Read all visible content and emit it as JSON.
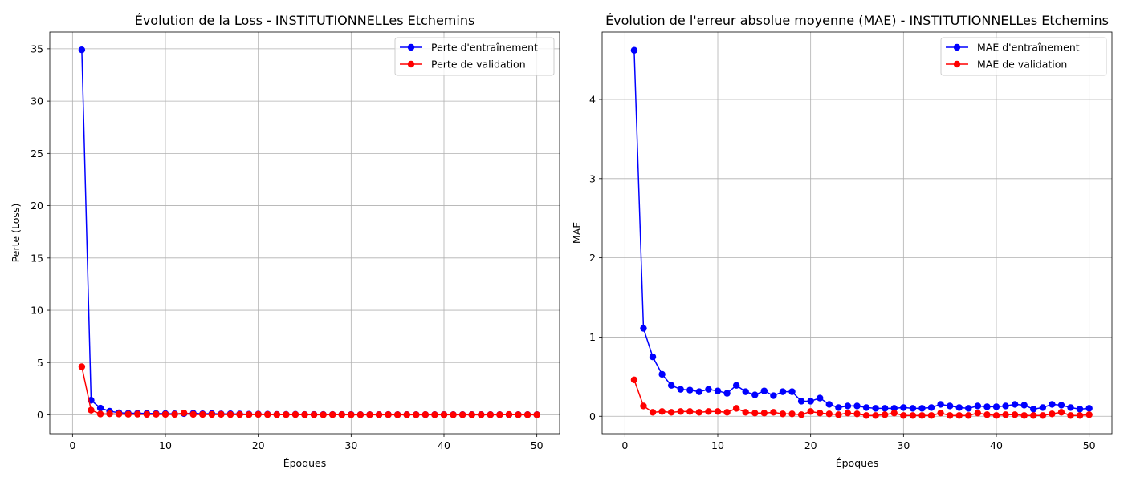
{
  "chart_data": [
    {
      "type": "line",
      "title": "Évolution de la Loss - INSTITUTIONNELLes Etchemins",
      "xlabel": "Époques",
      "ylabel": "Perte (Loss)",
      "xlim": [
        -2.45,
        52.45
      ],
      "ylim": [
        -1.8,
        36.6
      ],
      "xticks": [
        0,
        10,
        20,
        30,
        40,
        50
      ],
      "yticks": [
        0,
        5,
        10,
        15,
        20,
        25,
        30,
        35
      ],
      "grid": true,
      "legend_position": "top-right",
      "x": [
        1,
        2,
        3,
        4,
        5,
        6,
        7,
        8,
        9,
        10,
        11,
        12,
        13,
        14,
        15,
        16,
        17,
        18,
        19,
        20,
        21,
        22,
        23,
        24,
        25,
        26,
        27,
        28,
        29,
        30,
        31,
        32,
        33,
        34,
        35,
        36,
        37,
        38,
        39,
        40,
        41,
        42,
        43,
        44,
        45,
        46,
        47,
        48,
        49,
        50
      ],
      "series": [
        {
          "name": "Perte d'entraînement",
          "color": "#0000ff",
          "values": [
            34.9,
            1.4,
            0.65,
            0.35,
            0.2,
            0.15,
            0.15,
            0.14,
            0.13,
            0.12,
            0.1,
            0.12,
            0.15,
            0.1,
            0.12,
            0.09,
            0.1,
            0.08,
            0.06,
            0.07,
            0.06,
            0.04,
            0.04,
            0.05,
            0.03,
            0.03,
            0.03,
            0.03,
            0.03,
            0.03,
            0.02,
            0.02,
            0.02,
            0.03,
            0.02,
            0.02,
            0.02,
            0.02,
            0.02,
            0.02,
            0.02,
            0.02,
            0.02,
            0.02,
            0.02,
            0.02,
            0.02,
            0.02,
            0.02,
            0.02
          ]
        },
        {
          "name": "Perte de validation",
          "color": "#ff0000",
          "values": [
            4.6,
            0.45,
            0.08,
            0.1,
            0.08,
            0.06,
            0.07,
            0.05,
            0.06,
            0.05,
            0.05,
            0.18,
            0.05,
            0.04,
            0.04,
            0.05,
            0.03,
            0.03,
            0.02,
            0.04,
            0.03,
            0.02,
            0.02,
            0.03,
            0.02,
            0.01,
            0.01,
            0.02,
            0.02,
            0.01,
            0.01,
            0.01,
            0.01,
            0.02,
            0.01,
            0.01,
            0.01,
            0.02,
            0.01,
            0.01,
            0.01,
            0.01,
            0.01,
            0.01,
            0.01,
            0.01,
            0.03,
            0.01,
            0.01,
            0.01
          ]
        }
      ]
    },
    {
      "type": "line",
      "title": "Évolution de l'erreur absolue moyenne (MAE) - INSTITUTIONNELLes Etchemins",
      "xlabel": "Époques",
      "ylabel": "MAE",
      "xlim": [
        -2.45,
        52.45
      ],
      "ylim": [
        -0.22,
        4.85
      ],
      "xticks": [
        0,
        10,
        20,
        30,
        40,
        50
      ],
      "yticks": [
        0,
        1,
        2,
        3,
        4
      ],
      "grid": true,
      "legend_position": "top-right",
      "x": [
        1,
        2,
        3,
        4,
        5,
        6,
        7,
        8,
        9,
        10,
        11,
        12,
        13,
        14,
        15,
        16,
        17,
        18,
        19,
        20,
        21,
        22,
        23,
        24,
        25,
        26,
        27,
        28,
        29,
        30,
        31,
        32,
        33,
        34,
        35,
        36,
        37,
        38,
        39,
        40,
        41,
        42,
        43,
        44,
        45,
        46,
        47,
        48,
        49,
        50
      ],
      "series": [
        {
          "name": "MAE d'entraînement",
          "color": "#0000ff",
          "values": [
            4.62,
            1.11,
            0.75,
            0.53,
            0.39,
            0.34,
            0.33,
            0.31,
            0.34,
            0.32,
            0.29,
            0.39,
            0.31,
            0.27,
            0.32,
            0.26,
            0.31,
            0.31,
            0.19,
            0.19,
            0.23,
            0.15,
            0.11,
            0.13,
            0.13,
            0.11,
            0.1,
            0.1,
            0.1,
            0.11,
            0.1,
            0.1,
            0.11,
            0.15,
            0.13,
            0.11,
            0.1,
            0.13,
            0.12,
            0.12,
            0.13,
            0.15,
            0.14,
            0.09,
            0.11,
            0.15,
            0.14,
            0.11,
            0.09,
            0.1
          ]
        },
        {
          "name": "MAE de validation",
          "color": "#ff0000",
          "values": [
            0.46,
            0.13,
            0.05,
            0.06,
            0.05,
            0.06,
            0.06,
            0.05,
            0.06,
            0.06,
            0.05,
            0.1,
            0.05,
            0.04,
            0.04,
            0.05,
            0.03,
            0.03,
            0.02,
            0.06,
            0.04,
            0.03,
            0.02,
            0.04,
            0.03,
            0.01,
            0.01,
            0.02,
            0.04,
            0.01,
            0.01,
            0.01,
            0.01,
            0.04,
            0.01,
            0.01,
            0.01,
            0.04,
            0.02,
            0.01,
            0.02,
            0.02,
            0.01,
            0.01,
            0.01,
            0.03,
            0.05,
            0.01,
            0.01,
            0.02
          ]
        }
      ]
    }
  ]
}
